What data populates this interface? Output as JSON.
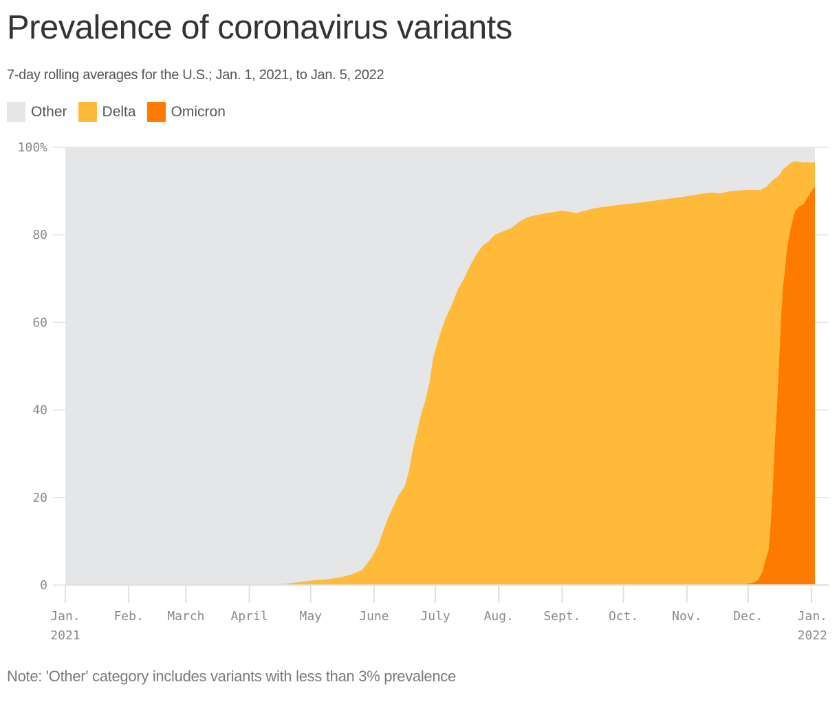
{
  "header": {
    "title": "Prevalence of coronavirus variants",
    "subtitle": "7-day rolling averages for the U.S.; Jan. 1, 2021, to Jan. 5, 2022"
  },
  "legend": [
    {
      "label": "Other",
      "color": "#e5e6e8"
    },
    {
      "label": "Delta",
      "color": "#ffba3a"
    },
    {
      "label": "Omicron",
      "color": "#ff7b00"
    }
  ],
  "footer": {
    "note": "Note: 'Other' category includes variants with less than 3% prevalence"
  },
  "chart_data": {
    "type": "area",
    "stacked": true,
    "title": "Prevalence of coronavirus variants",
    "subtitle": "7-day rolling averages for the U.S.; Jan. 1, 2021, to Jan. 5, 2022",
    "xlabel": "",
    "ylabel": "",
    "ylim": [
      0,
      100
    ],
    "y_ticks": [
      "0",
      "20",
      "40",
      "60",
      "80",
      "100%"
    ],
    "y_tick_values": [
      0,
      20,
      40,
      60,
      80,
      100
    ],
    "x_ticks": [
      {
        "label": "Jan.",
        "label2": "2021",
        "day": 0
      },
      {
        "label": "Feb.",
        "label2": "",
        "day": 31
      },
      {
        "label": "March",
        "label2": "",
        "day": 59
      },
      {
        "label": "April",
        "label2": "",
        "day": 90
      },
      {
        "label": "May",
        "label2": "",
        "day": 120
      },
      {
        "label": "June",
        "label2": "",
        "day": 151
      },
      {
        "label": "July",
        "label2": "",
        "day": 181
      },
      {
        "label": "Aug.",
        "label2": "",
        "day": 212
      },
      {
        "label": "Sept.",
        "label2": "",
        "day": 243
      },
      {
        "label": "Oct.",
        "label2": "",
        "day": 273
      },
      {
        "label": "Nov.",
        "label2": "",
        "day": 304
      },
      {
        "label": "Dec.",
        "label2": "",
        "day": 334
      },
      {
        "label": "Jan.",
        "label2": "2022",
        "day": 365
      }
    ],
    "grid": "horizontal",
    "legend_position": "top-left",
    "x_day_offset_note": "day = days since Jan. 1, 2021",
    "series": [
      {
        "name": "Other",
        "color": "#e5e6e8",
        "description": "remainder to 100%"
      },
      {
        "name": "Delta",
        "color": "#ffba3a",
        "days": [
          0,
          12,
          13,
          14,
          100,
          110,
          120,
          128,
          135,
          140,
          145,
          147,
          150,
          153,
          156,
          158,
          161,
          163,
          166,
          168,
          170,
          172,
          174,
          176,
          178,
          180,
          183,
          186,
          189,
          192,
          195,
          198,
          201,
          204,
          207,
          210,
          214,
          218,
          222,
          226,
          230,
          236,
          243,
          250,
          258,
          265,
          273,
          280,
          288,
          296,
          304,
          310,
          316,
          320,
          326,
          334,
          340,
          343,
          346,
          349,
          351,
          353,
          355,
          357,
          359,
          361,
          363,
          365,
          367,
          369
        ],
        "values": [
          0,
          0,
          0.3,
          0,
          0,
          0.4,
          1,
          1.3,
          1.8,
          2.4,
          3.4,
          4.5,
          6.5,
          9,
          13,
          15.5,
          18.5,
          20.5,
          22.5,
          26,
          31,
          35,
          39,
          42,
          46,
          52,
          57,
          61,
          64,
          67.5,
          70,
          73,
          75.5,
          77.5,
          78.5,
          80,
          80.8,
          81.5,
          83,
          84,
          84.5,
          85,
          85.5,
          85,
          86,
          86.5,
          87,
          87.3,
          87.8,
          88.3,
          88.8,
          89.3,
          89.7,
          89.5,
          90,
          90.3,
          90.2,
          91,
          92.5,
          93.5,
          95,
          95.7,
          96.5,
          96.8,
          96.7,
          96.5,
          96.6,
          96.4,
          96.7,
          96.6
        ]
      },
      {
        "name": "Omicron",
        "color": "#ff7b00",
        "days": [
          0,
          331,
          334,
          337,
          339,
          341,
          342,
          344,
          345,
          346,
          347,
          348,
          349,
          350,
          351,
          352,
          353,
          355,
          357,
          359,
          361,
          363,
          365,
          367,
          369
        ],
        "values": [
          0,
          0,
          0.3,
          0.6,
          1.2,
          3,
          5,
          8,
          14,
          22,
          32,
          40,
          50,
          60,
          68,
          72,
          77,
          82,
          85.5,
          86.5,
          87,
          88.5,
          90,
          91,
          91
        ]
      }
    ]
  }
}
